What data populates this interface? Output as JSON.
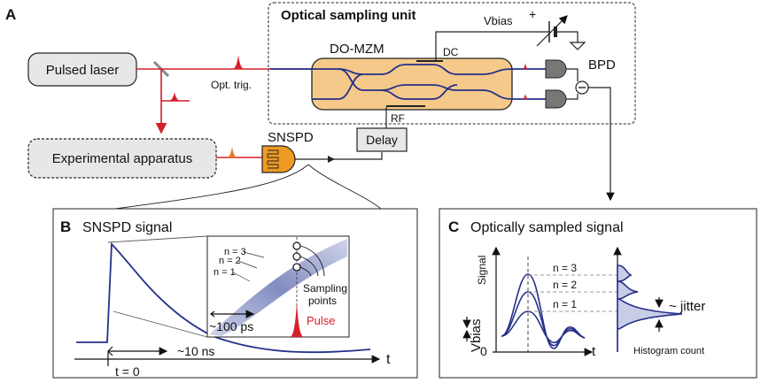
{
  "panel_a": {
    "letter": "A",
    "sampling_unit_title": "Optical sampling unit",
    "vbias": "Vbias",
    "plus": "+",
    "mzm": "DO-MZM",
    "dc": "DC",
    "rf": "RF",
    "bpd": "BPD",
    "laser": "Pulsed laser",
    "opt_trig": "Opt. trig.",
    "apparatus": "Experimental apparatus",
    "snspd": "SNSPD",
    "delay": "Delay"
  },
  "panel_b": {
    "letter": "B",
    "title": "SNSPD signal",
    "n3": "n = 3",
    "n2": "n = 2",
    "n1": "n = 1",
    "sampling_points_1": "Sampling",
    "sampling_points_2": "points",
    "pulse": "Pulse",
    "ps": "~100 ps",
    "ns": "~10 ns",
    "t_axis": "t",
    "t0": "t = 0"
  },
  "panel_c": {
    "letter": "C",
    "title": "Optically sampled signal",
    "signal": "Signal",
    "vbias": "Vbias",
    "zero": "0",
    "t_axis": "t",
    "n3": "n = 3",
    "n2": "n = 2",
    "n1": "n = 1",
    "jitter": "~ jitter",
    "histogram": "Histogram count"
  },
  "colors": {
    "laser_red": "#d4202a",
    "navy": "#25308a",
    "mzm_orange": "#f5c98a",
    "snspd_orange": "#ef9a22",
    "box_grey": "#e7e7e7"
  }
}
